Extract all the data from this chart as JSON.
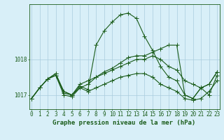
{
  "title": "Graphe pression niveau de la mer (hPa)",
  "bg_color": "#d8eff8",
  "grid_color": "#aaccdd",
  "line_color": "#1a5c1a",
  "marker": "+",
  "markersize": 4,
  "linewidth": 0.8,
  "title_fontsize": 6.5,
  "tick_fontsize": 5.5,
  "hours": [
    0,
    1,
    2,
    3,
    4,
    5,
    6,
    7,
    8,
    9,
    10,
    11,
    12,
    13,
    14,
    15,
    16,
    17,
    18,
    19,
    20,
    21,
    22,
    23
  ],
  "series": [
    [
      1016.9,
      1017.2,
      1017.45,
      1017.55,
      1017.1,
      1017.0,
      1017.2,
      1017.3,
      1017.5,
      1017.65,
      1017.75,
      1017.9,
      1018.05,
      1018.1,
      1018.1,
      1018.2,
      1018.3,
      1018.4,
      1018.4,
      1017.0,
      1016.9,
      1017.2,
      1017.3,
      1017.65
    ],
    [
      1016.9,
      1017.2,
      1017.45,
      1017.6,
      1017.05,
      1017.0,
      1017.25,
      1017.15,
      1018.4,
      1018.8,
      1019.05,
      1019.25,
      1019.3,
      1019.15,
      1018.65,
      1018.25,
      1017.8,
      1017.5,
      1017.4,
      1017.0,
      1016.9,
      1017.2,
      1017.3,
      1017.65
    ],
    [
      1016.9,
      1017.2,
      1017.45,
      1017.6,
      1017.1,
      1017.0,
      1017.3,
      1017.4,
      1017.5,
      1017.6,
      1017.7,
      1017.8,
      1017.9,
      1018.0,
      1018.0,
      1018.1,
      1018.0,
      1017.8,
      1017.7,
      1017.4,
      1017.3,
      1017.2,
      1017.0,
      1017.55
    ],
    [
      1016.9,
      1017.2,
      1017.45,
      1017.55,
      1017.0,
      1016.95,
      1017.2,
      1017.1,
      1017.2,
      1017.3,
      1017.4,
      1017.5,
      1017.55,
      1017.6,
      1017.6,
      1017.5,
      1017.3,
      1017.2,
      1017.1,
      1016.9,
      1016.85,
      1016.9,
      1017.1,
      1017.4
    ]
  ],
  "yticks": [
    1017,
    1018
  ],
  "ylim": [
    1016.6,
    1019.55
  ],
  "xlim": [
    -0.3,
    23.3
  ]
}
